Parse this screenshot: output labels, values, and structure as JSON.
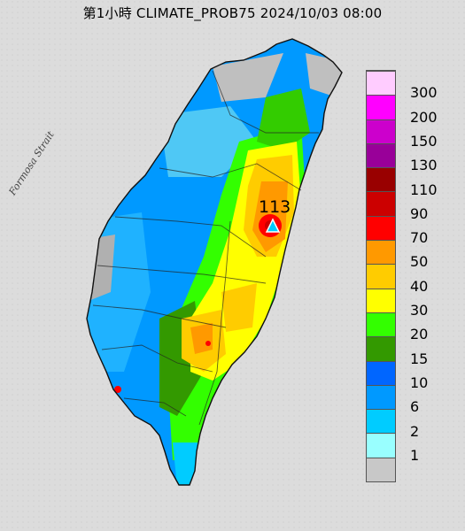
{
  "title": "第1小時  CLIMATE_PROB75 2024/10/03 08:00",
  "strait_label": "Formosa Strait",
  "max_marker": {
    "value": "113",
    "icon": "triangle-up-icon"
  },
  "legend": {
    "labels": [
      "300",
      "200",
      "150",
      "130",
      "110",
      "90",
      "70",
      "50",
      "40",
      "30",
      "20",
      "15",
      "10",
      "6",
      "2",
      "1"
    ],
    "colors": [
      "#ffccff",
      "#ff00ff",
      "#cc00cc",
      "#990099",
      "#990000",
      "#cc0000",
      "#ff0000",
      "#ff9900",
      "#ffcc00",
      "#ffff00",
      "#33ff00",
      "#339900",
      "#0066ff",
      "#0099ff",
      "#00ccff",
      "#99ffff",
      "#c8c8c8"
    ]
  }
}
